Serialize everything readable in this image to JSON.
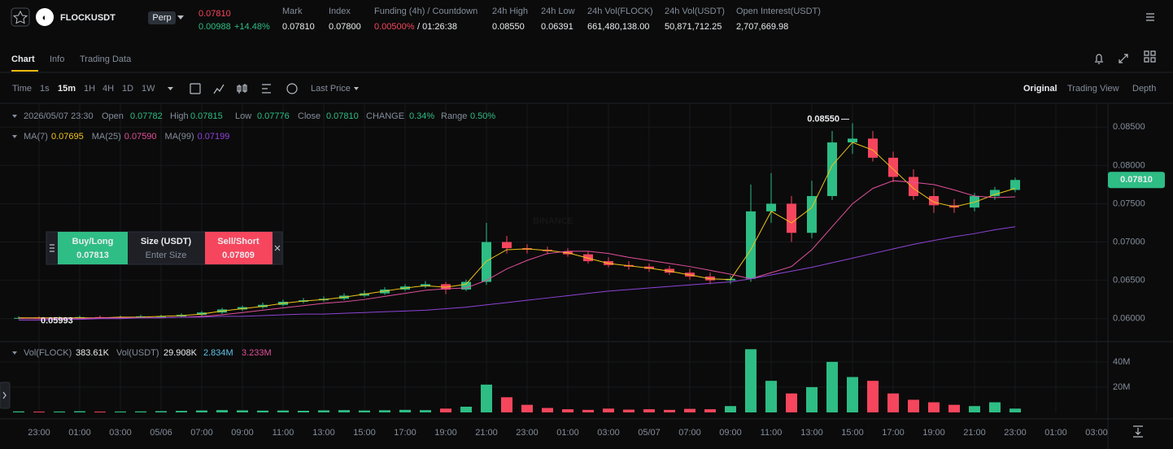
{
  "header": {
    "symbol": "FLOCKUSDT",
    "badge": "Perp",
    "price": "0.07810",
    "change": "0.00988",
    "change_pct": "+14.48%",
    "mark_label": "Mark",
    "mark": "0.07810",
    "index_label": "Index",
    "index": "0.07800",
    "funding_label": "Funding (4h) / Countdown",
    "funding": "0.00500%",
    "countdown": "/ 01:26:38",
    "high_label": "24h High",
    "high": "0.08550",
    "low_label": "24h Low",
    "low": "0.06391",
    "vol_flock_label": "24h Vol(FLOCK)",
    "vol_flock": "661,480,138.00",
    "vol_usdt_label": "24h Vol(USDT)",
    "vol_usdt": "50,871,712.25",
    "oi_label": "Open Interest(USDT)",
    "oi": "2,707,669.98"
  },
  "tabs": [
    "Chart",
    "Info",
    "Trading Data"
  ],
  "toolbar": {
    "intervals": [
      "Time",
      "1s",
      "15m",
      "1H",
      "4H",
      "1D",
      "1W"
    ],
    "price_source": "Last Price",
    "views": [
      "Original",
      "Trading View",
      "Depth"
    ]
  },
  "legend": {
    "time": "2026/05/07 23:30",
    "open_label": "Open",
    "open": "0.07782",
    "high_label": "High",
    "high": "0.07815",
    "low_label": "Low",
    "low": "0.07776",
    "close_label": "Close",
    "close": "0.07810",
    "change_label": "CHANGE",
    "change": "0.34%",
    "range_label": "Range",
    "range": "0.50%"
  },
  "order_panel": {
    "buy_label": "Buy/Long",
    "buy_price": "0.07813",
    "size_label": "Size (USDT)",
    "size_placeholder": "Enter Size",
    "sell_label": "Sell/Short",
    "sell_price": "0.07809"
  },
  "watermark": "BINANCE",
  "chart_data": {
    "type": "candlestick",
    "up_color": "#2ebd85",
    "down_color": "#f6465d",
    "grid": true,
    "categories": [
      null,
      "23:00",
      null,
      "01:00",
      null,
      "03:00",
      null,
      "05/06",
      null,
      "07:00",
      null,
      "09:00",
      null,
      "11:00",
      null,
      "13:00",
      null,
      "15:00",
      null,
      "17:00",
      null,
      "19:00",
      null,
      "21:00",
      null,
      "23:00",
      null,
      "01:00",
      null,
      "03:00",
      null,
      "05/07",
      null,
      "07:00",
      null,
      "09:00",
      null,
      "11:00",
      null,
      "13:00",
      null,
      "15:00",
      null,
      "17:00",
      null,
      "19:00",
      null,
      "21:00",
      null,
      "23:00",
      null,
      "01:00",
      null,
      "03:00"
    ],
    "open": [
      0.06,
      0.0601,
      0.06,
      0.0601,
      0.0602,
      0.0601,
      0.0602,
      0.0603,
      0.0603,
      0.0605,
      0.0608,
      0.0612,
      0.0615,
      0.0618,
      0.0622,
      0.0624,
      0.0626,
      0.063,
      0.0633,
      0.0638,
      0.0642,
      0.0645,
      0.0638,
      0.0648,
      0.07,
      0.0692,
      0.069,
      0.0688,
      0.0684,
      0.0675,
      0.067,
      0.0668,
      0.0665,
      0.066,
      0.0655,
      0.065,
      0.0652,
      0.074,
      0.075,
      0.0712,
      0.076,
      0.083,
      0.0835,
      0.081,
      0.0785,
      0.076,
      0.0748,
      0.0745,
      0.076,
      0.0768,
      null,
      null,
      null,
      null
    ],
    "high": [
      0.0603,
      0.0603,
      0.0603,
      0.0604,
      0.0604,
      0.0604,
      0.0605,
      0.0605,
      0.0607,
      0.061,
      0.0614,
      0.0617,
      0.0621,
      0.0625,
      0.0627,
      0.0629,
      0.0633,
      0.0637,
      0.0641,
      0.0645,
      0.0649,
      0.0648,
      0.0651,
      0.0725,
      0.0708,
      0.0697,
      0.0694,
      0.0692,
      0.0688,
      0.068,
      0.0675,
      0.0672,
      0.0669,
      0.0665,
      0.066,
      0.0656,
      0.0775,
      0.079,
      0.076,
      0.078,
      0.0845,
      0.0855,
      0.0845,
      0.0818,
      0.0795,
      0.077,
      0.0756,
      0.0764,
      0.0772,
      0.0784,
      null,
      null,
      null,
      null
    ],
    "low": [
      0.05993,
      0.0599,
      0.0599,
      0.06,
      0.06,
      0.06,
      0.0601,
      0.0601,
      0.0602,
      0.0603,
      0.0606,
      0.061,
      0.0613,
      0.0616,
      0.062,
      0.0622,
      0.0624,
      0.0628,
      0.0631,
      0.0636,
      0.064,
      0.0632,
      0.0636,
      0.0644,
      0.0685,
      0.0685,
      0.0684,
      0.0681,
      0.0672,
      0.0667,
      0.0664,
      0.0661,
      0.0657,
      0.0651,
      0.0645,
      0.0645,
      0.0648,
      0.0725,
      0.07,
      0.0705,
      0.0755,
      0.0815,
      0.0805,
      0.0778,
      0.0755,
      0.0738,
      0.0738,
      0.074,
      0.0755,
      0.0765,
      null,
      null,
      null,
      null
    ],
    "close": [
      0.0601,
      0.06,
      0.0601,
      0.0602,
      0.0601,
      0.0602,
      0.0603,
      0.0603,
      0.0605,
      0.0608,
      0.0612,
      0.0615,
      0.0618,
      0.0622,
      0.0624,
      0.0626,
      0.063,
      0.0633,
      0.0638,
      0.0642,
      0.0645,
      0.0638,
      0.0648,
      0.07,
      0.0692,
      0.069,
      0.0688,
      0.0684,
      0.0675,
      0.067,
      0.0668,
      0.0665,
      0.066,
      0.0655,
      0.065,
      0.0652,
      0.074,
      0.075,
      0.0712,
      0.076,
      0.083,
      0.0835,
      0.081,
      0.0785,
      0.076,
      0.0748,
      0.0745,
      0.076,
      0.0768,
      0.0781,
      null,
      null,
      null,
      null
    ],
    "ylim": [
      0.057,
      0.088
    ],
    "yticks": [
      {
        "value": 0.085,
        "label": "0.08500"
      },
      {
        "value": 0.08,
        "label": "0.08000"
      },
      {
        "value": 0.075,
        "label": "0.07500"
      },
      {
        "value": 0.07,
        "label": "0.07000"
      },
      {
        "value": 0.065,
        "label": "0.06500"
      },
      {
        "value": 0.06,
        "label": "0.06000"
      }
    ],
    "last_price_tag": "0.07810",
    "high_marker": "0.08550",
    "low_marker": "0.05993",
    "series": [
      {
        "name": "MA(7)",
        "value_label": "0.07695",
        "color": "#f0c419",
        "values": [
          0.0601,
          0.0601,
          0.0601,
          0.0601,
          0.0601,
          0.0602,
          0.0602,
          0.0603,
          0.0604,
          0.0606,
          0.061,
          0.0613,
          0.0616,
          0.062,
          0.0623,
          0.0625,
          0.0628,
          0.0632,
          0.0636,
          0.064,
          0.0643,
          0.0641,
          0.0645,
          0.0675,
          0.069,
          0.0691,
          0.0689,
          0.0686,
          0.0679,
          0.0672,
          0.0669,
          0.0666,
          0.0662,
          0.0657,
          0.0652,
          0.0651,
          0.069,
          0.074,
          0.0725,
          0.0745,
          0.08,
          0.083,
          0.082,
          0.0795,
          0.077,
          0.0752,
          0.0746,
          0.0752,
          0.0762,
          0.077,
          null,
          null,
          null,
          null
        ]
      },
      {
        "name": "MA(25)",
        "value_label": "0.07590",
        "color": "#e0509b",
        "values": [
          0.06,
          0.06,
          0.06,
          0.06,
          0.0601,
          0.0601,
          0.0601,
          0.0601,
          0.0602,
          0.0603,
          0.0605,
          0.0608,
          0.0611,
          0.0614,
          0.0617,
          0.062,
          0.0622,
          0.0625,
          0.0629,
          0.0633,
          0.0637,
          0.0639,
          0.064,
          0.065,
          0.0665,
          0.0676,
          0.0685,
          0.0688,
          0.0688,
          0.0685,
          0.068,
          0.0676,
          0.0672,
          0.0668,
          0.0663,
          0.0658,
          0.0652,
          0.066,
          0.0668,
          0.069,
          0.072,
          0.075,
          0.077,
          0.078,
          0.0778,
          0.0775,
          0.0768,
          0.076,
          0.0758,
          0.0759,
          null,
          null,
          null,
          null
        ]
      },
      {
        "name": "MA(99)",
        "value_label": "0.07199",
        "color": "#8e44d6",
        "values": [
          0.0598,
          0.0598,
          0.0599,
          0.0599,
          0.06,
          0.06,
          0.0601,
          0.0601,
          0.0602,
          0.0602,
          0.0603,
          0.0603,
          0.0604,
          0.0605,
          0.0606,
          0.0606,
          0.0607,
          0.0608,
          0.0609,
          0.061,
          0.0611,
          0.0613,
          0.0615,
          0.0618,
          0.0621,
          0.0624,
          0.0627,
          0.063,
          0.0633,
          0.0636,
          0.0638,
          0.064,
          0.0642,
          0.0644,
          0.0646,
          0.0648,
          0.0652,
          0.0657,
          0.0662,
          0.0667,
          0.0673,
          0.0679,
          0.0685,
          0.0691,
          0.0697,
          0.0702,
          0.0707,
          0.0711,
          0.0716,
          0.072,
          null,
          null,
          null,
          null
        ]
      }
    ],
    "volume": {
      "label_flock": "Vol(FLOCK)",
      "value_flock": "383.61K",
      "label_usdt": "Vol(USDT)",
      "value_usdt": "29.908K",
      "ma_short": "2.834M",
      "ma_short_color": "#5ec4e8",
      "ma_long": "3.233M",
      "ma_long_color": "#e0509b",
      "values": [
        0.8,
        0.6,
        0.7,
        0.9,
        0.6,
        0.7,
        0.8,
        1.0,
        1.2,
        1.5,
        1.8,
        1.6,
        1.4,
        1.5,
        1.3,
        1.6,
        1.8,
        1.5,
        1.7,
        2.0,
        1.8,
        3.0,
        4.5,
        22,
        12,
        6,
        3.5,
        2.5,
        2.0,
        3.0,
        2.2,
        2.5,
        2.0,
        2.8,
        2.5,
        5,
        50,
        25,
        15,
        20,
        40,
        28,
        25,
        15,
        10,
        8,
        6,
        5,
        8,
        3,
        null,
        null,
        null,
        null
      ],
      "ylim": [
        0,
        56
      ],
      "yticks": [
        {
          "value": 40,
          "label": "40M"
        },
        {
          "value": 20,
          "label": "20M"
        }
      ]
    }
  }
}
